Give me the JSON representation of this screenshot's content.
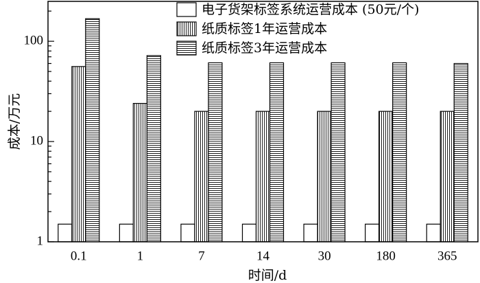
{
  "chart_data": {
    "type": "bar",
    "categories": [
      "0.1",
      "1",
      "7",
      "14",
      "30",
      "180",
      "365"
    ],
    "series": [
      {
        "name": "电子货架标签系统运营成本 (50元/个)",
        "pattern": "plain",
        "values": [
          1.5,
          1.5,
          1.5,
          1.5,
          1.5,
          1.5,
          1.5
        ]
      },
      {
        "name": "纸质标签1年运营成本",
        "pattern": "vertical",
        "values": [
          56,
          24,
          20,
          20,
          20,
          20,
          20
        ]
      },
      {
        "name": "纸质标签3年运营成本",
        "pattern": "horizontal",
        "values": [
          168,
          72,
          61,
          61,
          61,
          61,
          60
        ]
      }
    ],
    "xlabel": "时间/d",
    "ylabel": "成本/万元",
    "yscale": "log",
    "ylim": [
      1,
      250
    ],
    "yticks": [
      1,
      10,
      100
    ],
    "ytick_labels": [
      "1",
      "10",
      "100"
    ],
    "grid": false,
    "legend_position": "top-right",
    "colors": {
      "stroke": "#000000",
      "fill": "#ffffff"
    }
  }
}
